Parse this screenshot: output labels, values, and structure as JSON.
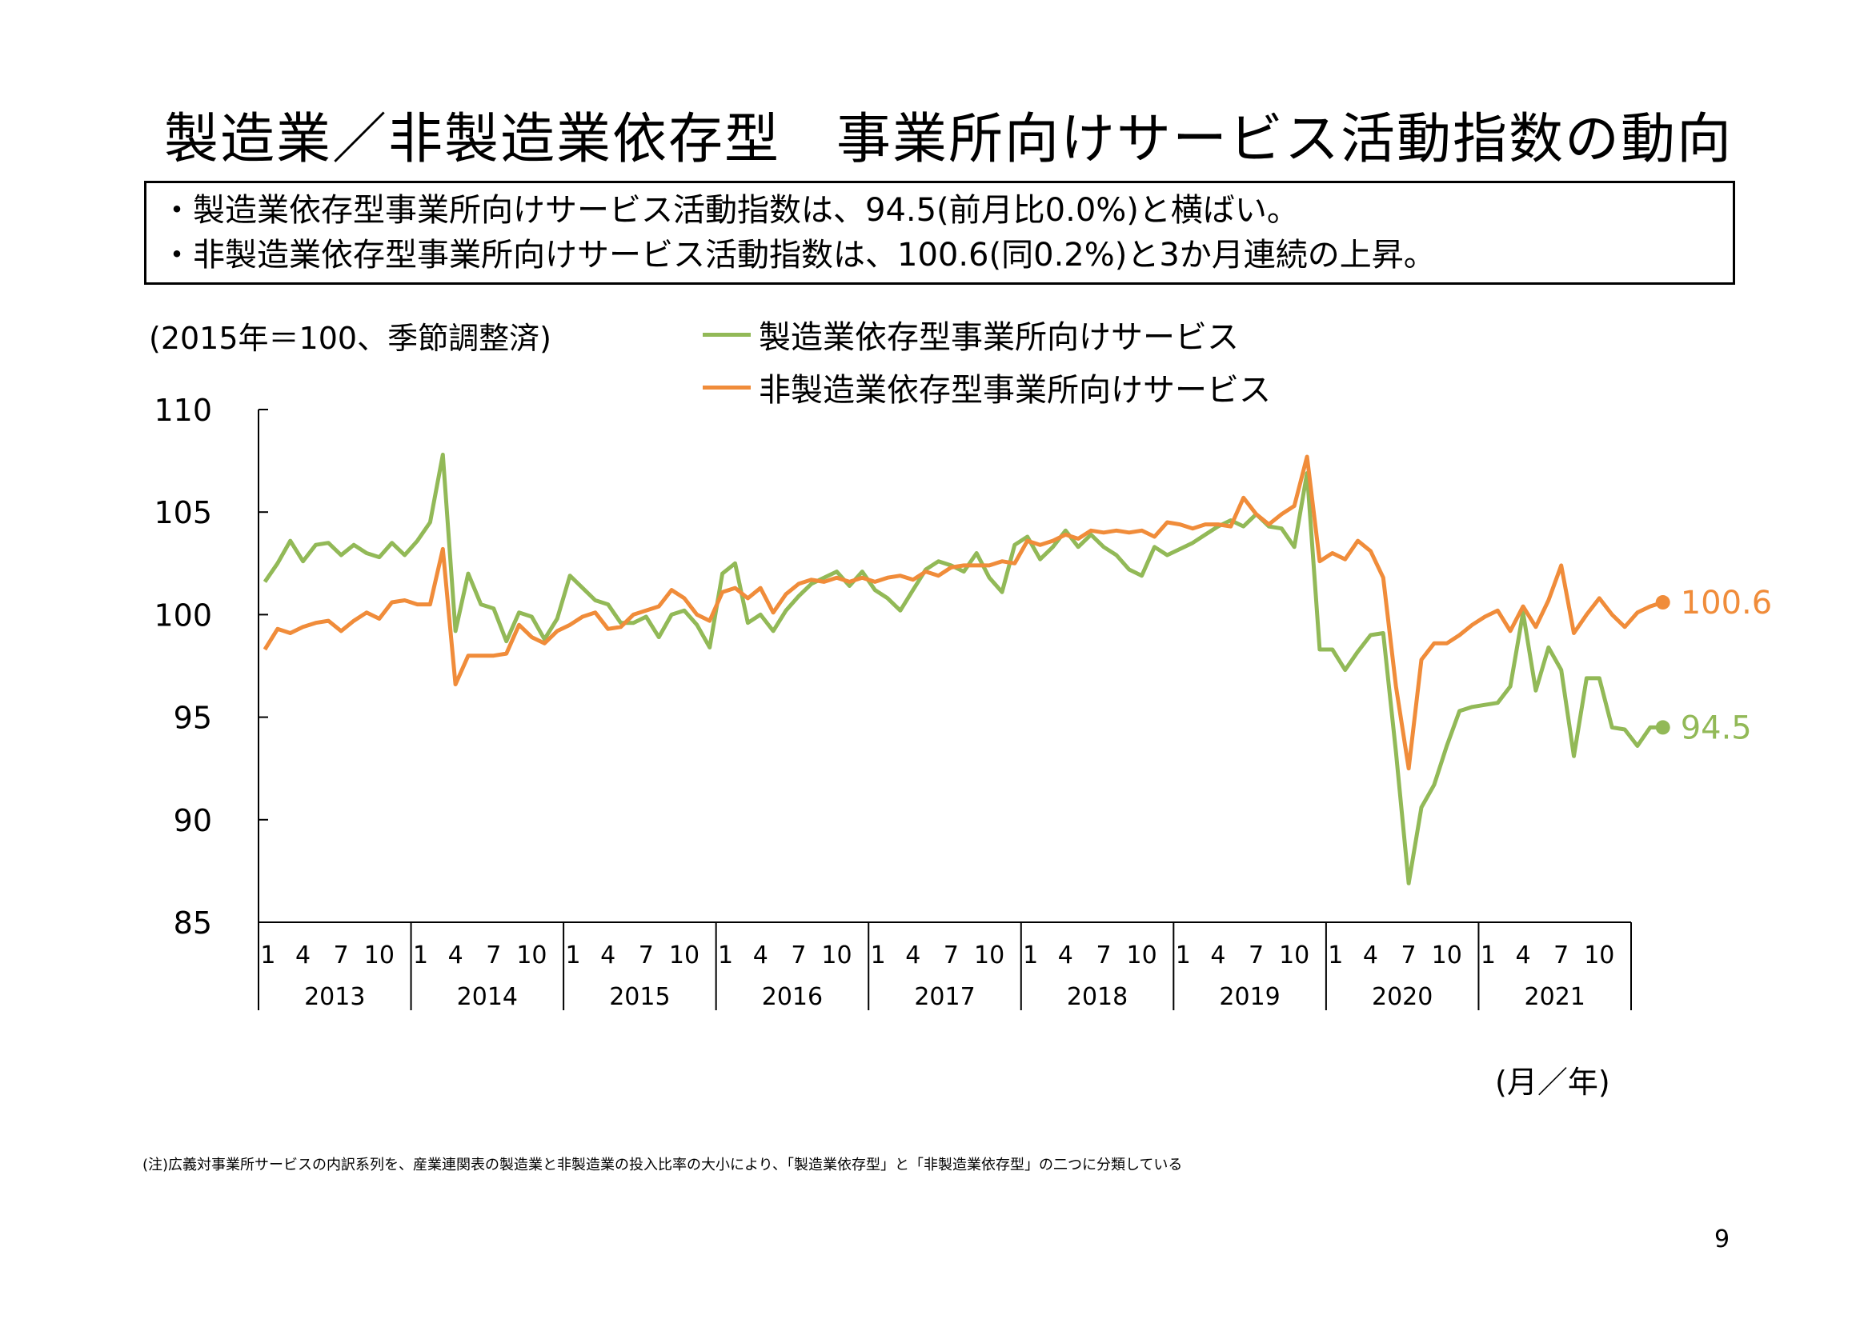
{
  "title": "製造業／非製造業依存型　事業所向けサービス活動指数の動向",
  "summary": [
    "・製造業依存型事業所向けサービス活動指数は、94.5(前月比0.0%)と横ばい。",
    "・非製造業依存型事業所向けサービス活動指数は、100.6(同0.2%)と3か月連続の上昇。"
  ],
  "unit_note": "(2015年＝100、季節調整済)",
  "x_axis_unit": "(月／年)",
  "footnote": "(注)広義対事業所サービスの内訳系列を、産業連関表の製造業と非製造業の投入比率の大小により、「製造業依存型」と「非製造業依存型」の二つに分類している",
  "page_number": "9",
  "chart_data": {
    "type": "line",
    "title": "",
    "xlabel": "(月／年)",
    "ylabel": "",
    "ylim": [
      85,
      110
    ],
    "yticks": [
      "85",
      "90",
      "95",
      "100",
      "105",
      "110"
    ],
    "month_ticks": [
      "1",
      "4",
      "7",
      "10"
    ],
    "years": [
      "2013",
      "2014",
      "2015",
      "2016",
      "2017",
      "2018",
      "2019",
      "2020",
      "2021"
    ],
    "x_start": "2013-01",
    "x_end": "2021-12",
    "legend_position": "top-center",
    "grid": false,
    "series": [
      {
        "name": "製造業依存型事業所向けサービス",
        "color": "#92b957",
        "end_label": "94.5",
        "values": [
          101.6,
          102.5,
          103.6,
          102.6,
          103.4,
          103.5,
          102.9,
          103.4,
          103.0,
          102.8,
          103.5,
          102.9,
          103.6,
          104.5,
          107.8,
          99.2,
          102.0,
          100.5,
          100.3,
          98.7,
          100.1,
          99.9,
          98.8,
          99.8,
          101.9,
          101.3,
          100.7,
          100.5,
          99.6,
          99.6,
          99.9,
          98.9,
          100.0,
          100.2,
          99.5,
          98.4,
          102.0,
          102.5,
          99.6,
          100.0,
          99.2,
          100.2,
          100.9,
          101.5,
          101.8,
          102.1,
          101.4,
          102.1,
          101.2,
          100.8,
          100.2,
          101.2,
          102.2,
          102.6,
          102.4,
          102.1,
          103.0,
          101.8,
          101.1,
          103.4,
          103.8,
          102.7,
          103.3,
          104.1,
          103.3,
          103.9,
          103.3,
          102.9,
          102.2,
          101.9,
          103.3,
          102.9,
          103.2,
          103.5,
          103.9,
          104.3,
          104.6,
          104.3,
          104.9,
          104.3,
          104.2,
          103.3,
          106.9,
          98.3,
          98.3,
          97.3,
          98.2,
          99.0,
          99.1,
          93.3,
          86.9,
          90.6,
          91.7,
          93.6,
          95.3,
          95.5,
          95.6,
          95.7,
          96.5,
          100.1,
          96.3,
          98.4,
          97.3,
          93.1,
          96.9,
          96.9,
          94.5,
          94.4,
          93.6,
          94.5,
          94.5
        ]
      },
      {
        "name": "非製造業依存型事業所向けサービス",
        "color": "#f08c3a",
        "end_label": "100.6",
        "values": [
          98.3,
          99.3,
          99.1,
          99.4,
          99.6,
          99.7,
          99.2,
          99.7,
          100.1,
          99.8,
          100.6,
          100.7,
          100.5,
          100.5,
          103.2,
          96.6,
          98.0,
          98.0,
          98.0,
          98.1,
          99.5,
          98.9,
          98.6,
          99.2,
          99.5,
          99.9,
          100.1,
          99.3,
          99.4,
          100.0,
          100.2,
          100.4,
          101.2,
          100.8,
          100.0,
          99.7,
          101.1,
          101.3,
          100.8,
          101.3,
          100.1,
          101.0,
          101.5,
          101.7,
          101.6,
          101.8,
          101.6,
          101.8,
          101.6,
          101.8,
          101.9,
          101.7,
          102.1,
          101.9,
          102.3,
          102.4,
          102.4,
          102.4,
          102.6,
          102.5,
          103.6,
          103.4,
          103.6,
          103.9,
          103.7,
          104.1,
          104.0,
          104.1,
          104.0,
          104.1,
          103.8,
          104.5,
          104.4,
          104.2,
          104.4,
          104.4,
          104.3,
          105.7,
          104.9,
          104.4,
          104.9,
          105.3,
          107.7,
          102.6,
          103.0,
          102.7,
          103.6,
          103.1,
          101.8,
          96.5,
          92.5,
          97.8,
          98.6,
          98.6,
          99.0,
          99.5,
          99.9,
          100.2,
          99.2,
          100.4,
          99.4,
          100.7,
          102.4,
          99.1,
          100.0,
          100.8,
          100.0,
          99.4,
          100.1,
          100.4,
          100.6
        ]
      }
    ]
  }
}
